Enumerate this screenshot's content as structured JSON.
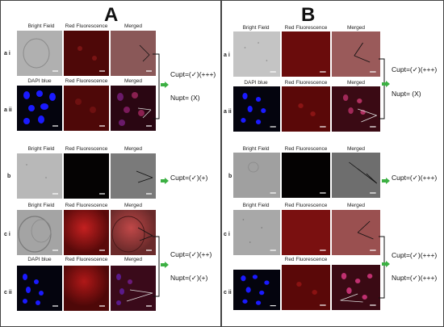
{
  "panels": [
    {
      "letter": "A"
    },
    {
      "letter": "B"
    }
  ],
  "column_headers": {
    "bright": "Bright Field",
    "red": "Red Fluorescence",
    "merged": "Merged",
    "dapi": "DAPI blue"
  },
  "row_labels": {
    "ai": "a i",
    "aii": "a ii",
    "b": "b",
    "ci": "c i",
    "cii": "c ii"
  },
  "annotations": {
    "A": {
      "a_cupt": "Cupt=(✓)(+++)",
      "a_nupt": "Nupt=    (X)",
      "b_cupt": "Cupt=(✓)(+)",
      "c_cupt": "Cupt=(✓)(++)",
      "c_nupt": "Nupt=(✓)(+)"
    },
    "B": {
      "a_cupt": "Cupt=(✓)(+++)",
      "a_nupt": "Nupt=    (X)",
      "b_cupt": "Cupt=(✓)(+++)",
      "c_cupt": "Cupt=(✓)(+++)",
      "c_nupt": "Nupt=(✓)(+++)"
    }
  },
  "colors": {
    "bright_field": "#a8a8a8",
    "red_fluor": "#5a0a0a",
    "merged": "#7a4848",
    "dapi_bg": "#05050f",
    "dapi_nuclei": "#1a1aff",
    "green_arrow": "#3cb043"
  }
}
